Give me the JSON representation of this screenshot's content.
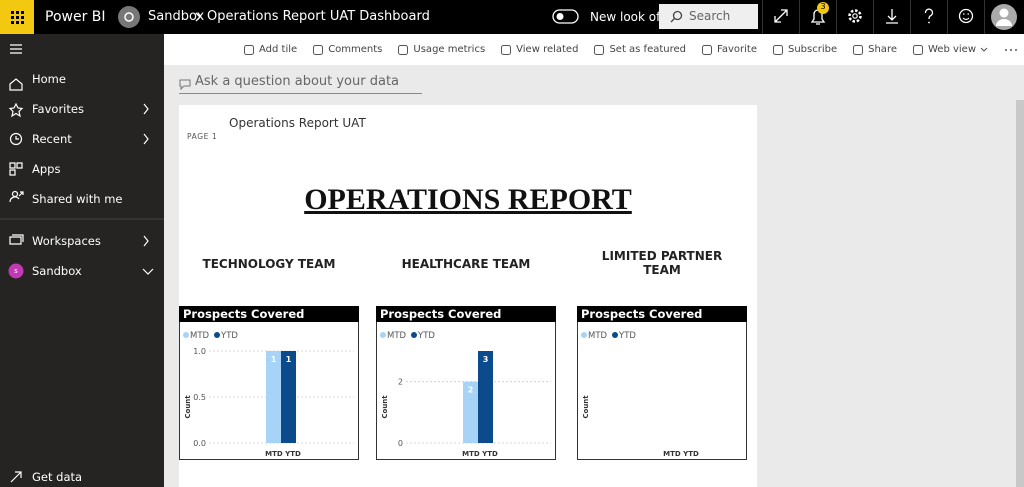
{
  "topbar": {
    "brand": "Power BI",
    "workspace": "Sandbox",
    "dashboard": "Operations Report UAT Dashboard",
    "toggle_label": "New look off",
    "search_placeholder": "Search",
    "notification_count": 3
  },
  "sidebar": {
    "items": [
      "Home",
      "Favorites",
      "Recent",
      "Apps",
      "Shared with me",
      "Workspaces",
      "Sandbox"
    ],
    "sandbox_initial": "s",
    "footer": "Get data"
  },
  "toolbar": [
    "Add tile",
    "Comments",
    "Usage metrics",
    "View related",
    "Set as featured",
    "Favorite",
    "Subscribe",
    "Share",
    "Web view"
  ],
  "qa_placeholder": "Ask a question about your data",
  "tile": {
    "title": "Operations Report UAT",
    "page_label": "PAGE 1",
    "report_title": "OPERATIONS REPORT",
    "teams": [
      {
        "name": "TECHNOLOGY TEAM",
        "chart": {
          "type": "bar",
          "title": "Prospects Covered",
          "x_label": "MTD YTD",
          "y_label": "Count",
          "categories": [
            null
          ],
          "series": [
            {
              "name": "MTD",
              "color": "#a7d3f7",
              "values": [
                1
              ]
            },
            {
              "name": "YTD",
              "color": "#0b4a8b",
              "values": [
                1
              ]
            }
          ],
          "ylim": [
            0,
            1
          ],
          "yticks": [
            {
              "value": 0,
              "label": "0.0"
            },
            {
              "value": 0.5,
              "label": "0.5"
            },
            {
              "value": 1,
              "label": "1.0"
            }
          ],
          "grid": true
        }
      },
      {
        "name": "HEALTHCARE TEAM",
        "chart": {
          "type": "bar",
          "title": "Prospects Covered",
          "x_label": "MTD YTD",
          "y_label": "Count",
          "categories": [
            null
          ],
          "series": [
            {
              "name": "MTD",
              "color": "#a7d3f7",
              "values": [
                2
              ]
            },
            {
              "name": "YTD",
              "color": "#0b4a8b",
              "values": [
                3
              ]
            }
          ],
          "ylim": [
            0,
            3
          ],
          "yticks": [
            0,
            2
          ],
          "grid": true
        }
      },
      {
        "name": "LIMITED PARTNER TEAM",
        "chart": {
          "type": "bar",
          "title": "Prospects Covered",
          "x_label": "MTD YTD",
          "y_label": "Count",
          "categories": [
            null
          ],
          "series": [
            {
              "name": "MTD",
              "color": "#a7d3f7",
              "values": [
                null
              ]
            },
            {
              "name": "YTD",
              "color": "#0b4a8b",
              "values": [
                null
              ]
            }
          ],
          "grid": true
        }
      }
    ]
  }
}
